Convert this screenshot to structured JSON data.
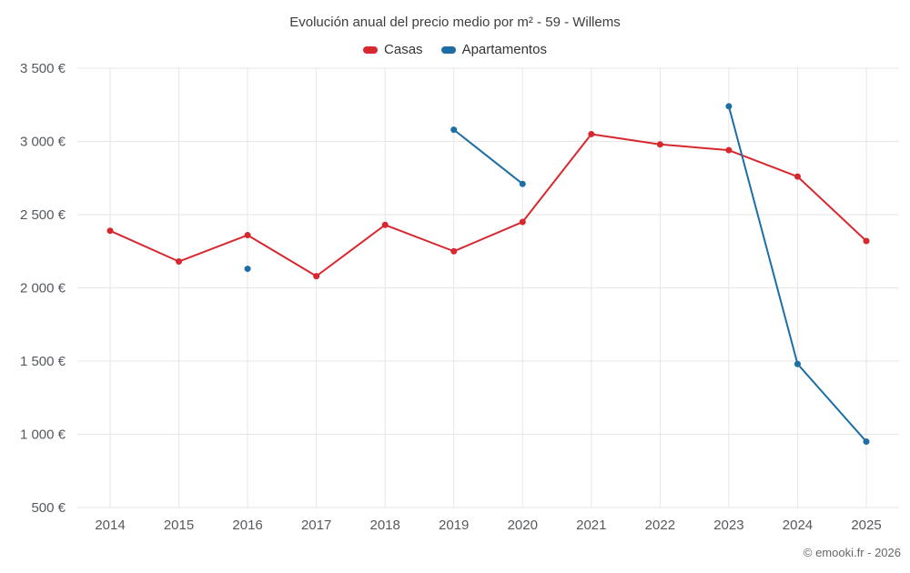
{
  "title": "Evolución anual del precio medio por m² - 59 - Willems",
  "footer": "© emooki.fr - 2026",
  "legend": [
    {
      "label": "Casas",
      "color": "#d7282f"
    },
    {
      "label": "Apartamentos",
      "color": "#1c6ea4"
    }
  ],
  "chart_data": {
    "type": "line",
    "title": "Evolución anual del precio medio por m² - 59 - Willems",
    "x": [
      2014,
      2015,
      2016,
      2017,
      2018,
      2019,
      2020,
      2021,
      2022,
      2023,
      2024,
      2025
    ],
    "series": [
      {
        "name": "Casas",
        "color": "#d7282f",
        "values": [
          2390,
          2180,
          2360,
          2080,
          2430,
          2250,
          2450,
          3050,
          2980,
          2940,
          2760,
          2320
        ]
      },
      {
        "name": "Apartamentos",
        "color": "#1c6ea4",
        "values": [
          null,
          null,
          2130,
          null,
          null,
          3080,
          2710,
          null,
          null,
          3240,
          1480,
          950
        ]
      }
    ],
    "ylim": [
      500,
      3500
    ],
    "ytick_step": 500,
    "ytick_suffix": "€",
    "xlabel": "",
    "ylabel": "",
    "grid": true,
    "legend_position": "top"
  }
}
